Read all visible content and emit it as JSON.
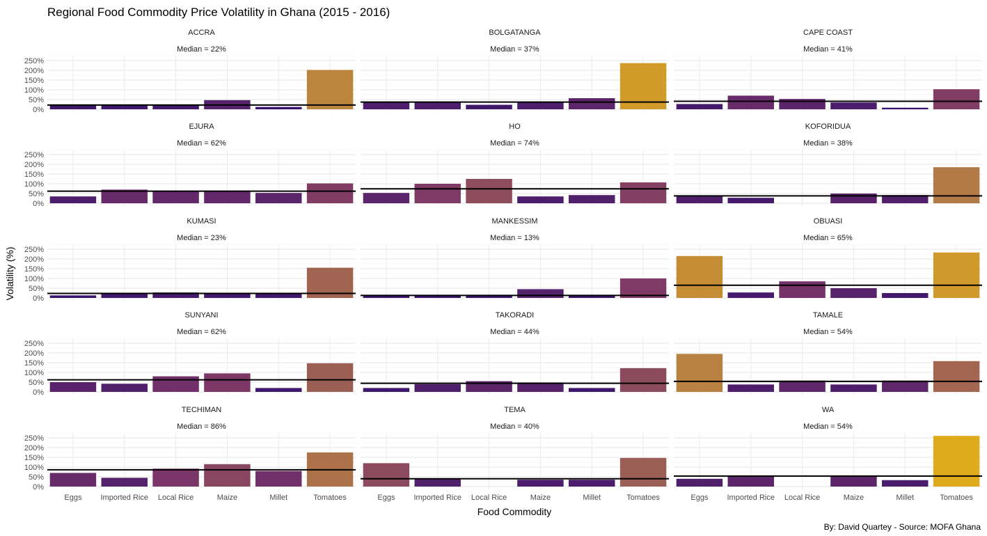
{
  "chart_data": {
    "type": "bar",
    "title": "Regional Food Commodity Price Volatility in Ghana (2015 - 2016)",
    "xlabel": "Food Commodity",
    "ylabel": "Volatility (%)",
    "caption": "By: David Quartey - Source: MOFA Ghana",
    "categories": [
      "Eggs",
      "Imported Rice",
      "Local Rice",
      "Maize",
      "Millet",
      "Tomatoes"
    ],
    "y_ticks": [
      "0%",
      "50%",
      "100%",
      "150%",
      "200%",
      "250%"
    ],
    "ylim": [
      0,
      270
    ],
    "grid": true,
    "color_scale": {
      "low": "#2e0f6e",
      "mid": "#7a3468",
      "mid2": "#b07848",
      "high": "#dfaa1c",
      "max_value": 260
    },
    "panels": [
      {
        "region": "ACCRA",
        "median_label": "Median = 22%",
        "median": 22,
        "values": [
          23,
          22,
          24,
          47,
          12,
          202
        ]
      },
      {
        "region": "BOLGATANGA",
        "median_label": "Median = 37%",
        "median": 37,
        "values": [
          37,
          37,
          23,
          37,
          57,
          237
        ]
      },
      {
        "region": "CAPE COAST",
        "median_label": "Median = 41%",
        "median": 41,
        "values": [
          27,
          70,
          53,
          35,
          8,
          103
        ]
      },
      {
        "region": "EJURA",
        "median_label": "Median = 62%",
        "median": 62,
        "values": [
          35,
          70,
          62,
          62,
          53,
          102
        ]
      },
      {
        "region": "HO",
        "median_label": "Median = 74%",
        "median": 74,
        "values": [
          53,
          100,
          125,
          35,
          42,
          107
        ]
      },
      {
        "region": "KOFORIDUA",
        "median_label": "Median = 38%",
        "median": 38,
        "values": [
          38,
          28,
          0,
          50,
          42,
          185
        ]
      },
      {
        "region": "KUMASI",
        "median_label": "Median = 23%",
        "median": 23,
        "values": [
          13,
          22,
          28,
          23,
          23,
          155
        ]
      },
      {
        "region": "MANKESSIM",
        "median_label": "Median = 13%",
        "median": 13,
        "values": [
          13,
          13,
          13,
          45,
          13,
          100
        ]
      },
      {
        "region": "OBUASI",
        "median_label": "Median = 65%",
        "median": 65,
        "values": [
          215,
          28,
          85,
          50,
          25,
          233
        ]
      },
      {
        "region": "SUNYANI",
        "median_label": "Median = 62%",
        "median": 62,
        "values": [
          50,
          42,
          80,
          95,
          20,
          147
        ]
      },
      {
        "region": "TAKORADI",
        "median_label": "Median = 44%",
        "median": 44,
        "values": [
          20,
          40,
          55,
          48,
          20,
          122
        ]
      },
      {
        "region": "TAMALE",
        "median_label": "Median = 54%",
        "median": 54,
        "values": [
          195,
          38,
          58,
          38,
          58,
          158
        ]
      },
      {
        "region": "TECHIMAN",
        "median_label": "Median = 86%",
        "median": 86,
        "values": [
          70,
          45,
          92,
          115,
          80,
          175
        ]
      },
      {
        "region": "TEMA",
        "median_label": "Median = 40%",
        "median": 40,
        "values": [
          120,
          42,
          0,
          35,
          35,
          147
        ]
      },
      {
        "region": "WA",
        "median_label": "Median = 54%",
        "median": 54,
        "values": [
          40,
          55,
          0,
          55,
          33,
          260
        ]
      }
    ]
  }
}
